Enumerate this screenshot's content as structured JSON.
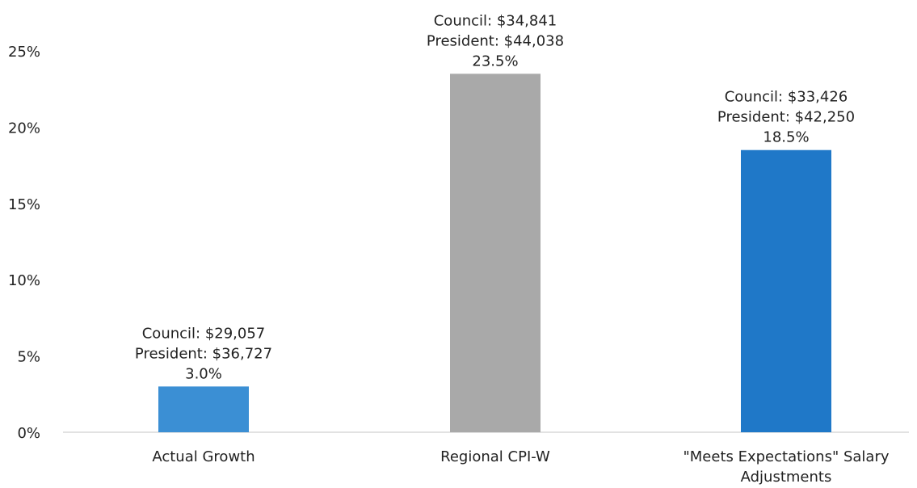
{
  "chart_data": {
    "type": "bar",
    "title": "",
    "xlabel": "",
    "ylabel": "",
    "ylim": [
      0,
      25
    ],
    "y_ticks": [
      {
        "value": 0,
        "label": "0%"
      },
      {
        "value": 5,
        "label": "5%"
      },
      {
        "value": 10,
        "label": "10%"
      },
      {
        "value": 15,
        "label": "15%"
      },
      {
        "value": 20,
        "label": "20%"
      },
      {
        "value": 25,
        "label": "25%"
      }
    ],
    "grid": false,
    "categories": [
      {
        "lines": [
          "Actual Growth"
        ]
      },
      {
        "lines": [
          "Regional CPI-W"
        ]
      },
      {
        "lines": [
          "\"Meets Expectations\" Salary",
          "Adjustments"
        ]
      }
    ],
    "values": [
      3.0,
      23.5,
      18.5
    ],
    "bars": [
      {
        "color": "#3b8fd4",
        "labels": [
          "Council: $29,057",
          "President: $36,727",
          "3.0%"
        ]
      },
      {
        "color": "#a9a9a9",
        "labels": [
          "Council: $34,841",
          "President: $44,038",
          "23.5%"
        ]
      },
      {
        "color": "#1f78c8",
        "labels": [
          "Council: $33,426",
          "President: $42,250",
          "18.5%"
        ]
      }
    ]
  }
}
